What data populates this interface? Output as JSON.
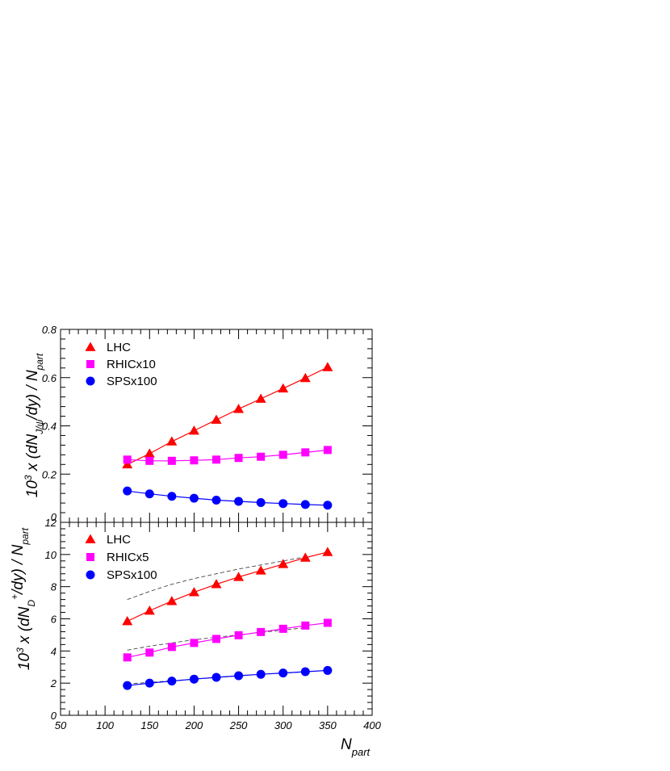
{
  "chart_data": [
    {
      "type": "line",
      "panel": "top",
      "ylabel": {
        "base": "10",
        "exp": "3",
        "mid": " x (dN",
        "sub": "J/ψ",
        "after": "/dy) / N",
        "sub2": "part"
      },
      "xlim": [
        50,
        400
      ],
      "ylim": [
        0,
        0.8
      ],
      "yticks": [
        "0",
        "0.2",
        "0.4",
        "0.6",
        "0.8"
      ],
      "grid": false,
      "legend_position": "top-left",
      "series": [
        {
          "name": "LHC",
          "marker": "triangle",
          "color": "#ff0000",
          "x": [
            125,
            150,
            175,
            200,
            225,
            250,
            275,
            300,
            325,
            350
          ],
          "y": [
            0.24,
            0.285,
            0.335,
            0.38,
            0.425,
            0.47,
            0.512,
            0.555,
            0.598,
            0.643
          ],
          "curve": null
        },
        {
          "name": "RHICx10",
          "marker": "square",
          "color": "#ff00ff",
          "x": [
            125,
            150,
            175,
            200,
            225,
            250,
            275,
            300,
            325,
            350
          ],
          "y": [
            0.26,
            0.255,
            0.255,
            0.257,
            0.26,
            0.267,
            0.272,
            0.28,
            0.29,
            0.3
          ],
          "curve": null
        },
        {
          "name": "SPSx100",
          "marker": "circle",
          "color": "#0000ff",
          "x": [
            125,
            150,
            175,
            200,
            225,
            250,
            275,
            300,
            325,
            350
          ],
          "y": [
            0.13,
            0.118,
            0.108,
            0.1,
            0.092,
            0.087,
            0.082,
            0.078,
            0.074,
            0.071
          ],
          "curve": null
        }
      ]
    },
    {
      "type": "line",
      "panel": "bottom",
      "ylabel": {
        "base": "10",
        "exp": "3",
        "mid": " x (dN",
        "sub": "D",
        "subsup": "+",
        "after": "/dy) / N",
        "sub2": "part"
      },
      "xlabel": {
        "main": "N",
        "sub": "part"
      },
      "xlim": [
        50,
        400
      ],
      "ylim": [
        0,
        12
      ],
      "xticks": [
        "50",
        "100",
        "150",
        "200",
        "250",
        "300",
        "350",
        "400"
      ],
      "yticks": [
        "0",
        "2",
        "4",
        "6",
        "8",
        "10",
        "12"
      ],
      "grid": false,
      "legend_position": "top-left",
      "series": [
        {
          "name": "LHC",
          "marker": "triangle",
          "color": "#ff0000",
          "x": [
            125,
            150,
            175,
            200,
            225,
            250,
            275,
            300,
            325,
            350
          ],
          "y": [
            5.85,
            6.5,
            7.1,
            7.65,
            8.15,
            8.6,
            9.0,
            9.4,
            9.8,
            10.15
          ],
          "curve": [
            7.2,
            7.7,
            8.15,
            8.5,
            8.8,
            9.1,
            9.35,
            9.6,
            9.85
          ]
        },
        {
          "name": "RHICx5",
          "marker": "square",
          "color": "#ff00ff",
          "x": [
            125,
            150,
            175,
            200,
            225,
            250,
            275,
            300,
            325,
            350
          ],
          "y": [
            3.6,
            3.9,
            4.25,
            4.5,
            4.75,
            4.98,
            5.18,
            5.38,
            5.58,
            5.75
          ],
          "curve": [
            4.05,
            4.3,
            4.5,
            4.7,
            4.85,
            5.0,
            5.15,
            5.3,
            5.45
          ]
        },
        {
          "name": "SPSx100",
          "marker": "circle",
          "color": "#0000ff",
          "x": [
            125,
            150,
            175,
            200,
            225,
            250,
            275,
            300,
            325,
            350
          ],
          "y": [
            1.85,
            2.0,
            2.13,
            2.25,
            2.36,
            2.46,
            2.55,
            2.63,
            2.71,
            2.79
          ],
          "curve": [
            1.95,
            2.05,
            2.15,
            2.25,
            2.35,
            2.45,
            2.55,
            2.62,
            2.7
          ]
        }
      ]
    }
  ]
}
